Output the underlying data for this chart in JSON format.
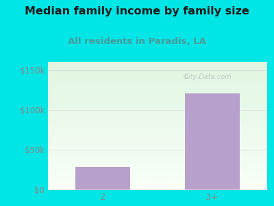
{
  "title": "Median family income by family size",
  "subtitle": "All residents in Paradis, LA",
  "categories": [
    "2",
    "3+"
  ],
  "values": [
    28000,
    120000
  ],
  "bar_color": "#b8a0cc",
  "title_fontsize": 11.5,
  "subtitle_fontsize": 9.5,
  "subtitle_color": "#4a9a9a",
  "title_color": "#1a1a1a",
  "yticks": [
    0,
    50000,
    100000,
    150000
  ],
  "ytick_labels": [
    "$0",
    "$50k",
    "$100k",
    "$150k"
  ],
  "ylim": [
    0,
    160000
  ],
  "background_color": "#00e5e5",
  "watermark": "City-Data.com",
  "tick_color": "#888888",
  "grid_color": "#d8d8d8"
}
